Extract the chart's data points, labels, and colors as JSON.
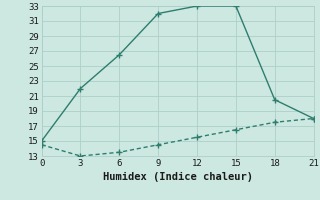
{
  "line1_x": [
    0,
    3,
    6,
    9,
    12,
    15,
    18,
    21
  ],
  "line1_y": [
    15,
    22,
    26.5,
    32,
    33,
    33,
    20.5,
    18
  ],
  "line2_x": [
    0,
    3,
    6,
    9,
    12,
    15,
    18,
    21
  ],
  "line2_y": [
    14.5,
    13,
    13.5,
    14.5,
    15.5,
    16.5,
    17.5,
    18
  ],
  "line_color": "#2e7d6e",
  "bg_color": "#cce8e0",
  "grid_color": "#aecfc7",
  "xlabel": "Humidex (Indice chaleur)",
  "xlim": [
    0,
    21
  ],
  "ylim": [
    13,
    33
  ],
  "xticks": [
    0,
    3,
    6,
    9,
    12,
    15,
    18,
    21
  ],
  "yticks": [
    13,
    15,
    17,
    19,
    21,
    23,
    25,
    27,
    29,
    31,
    33
  ],
  "xlabel_fontsize": 7.5,
  "tick_fontsize": 6.5,
  "line_width": 1.0,
  "marker_size": 3
}
